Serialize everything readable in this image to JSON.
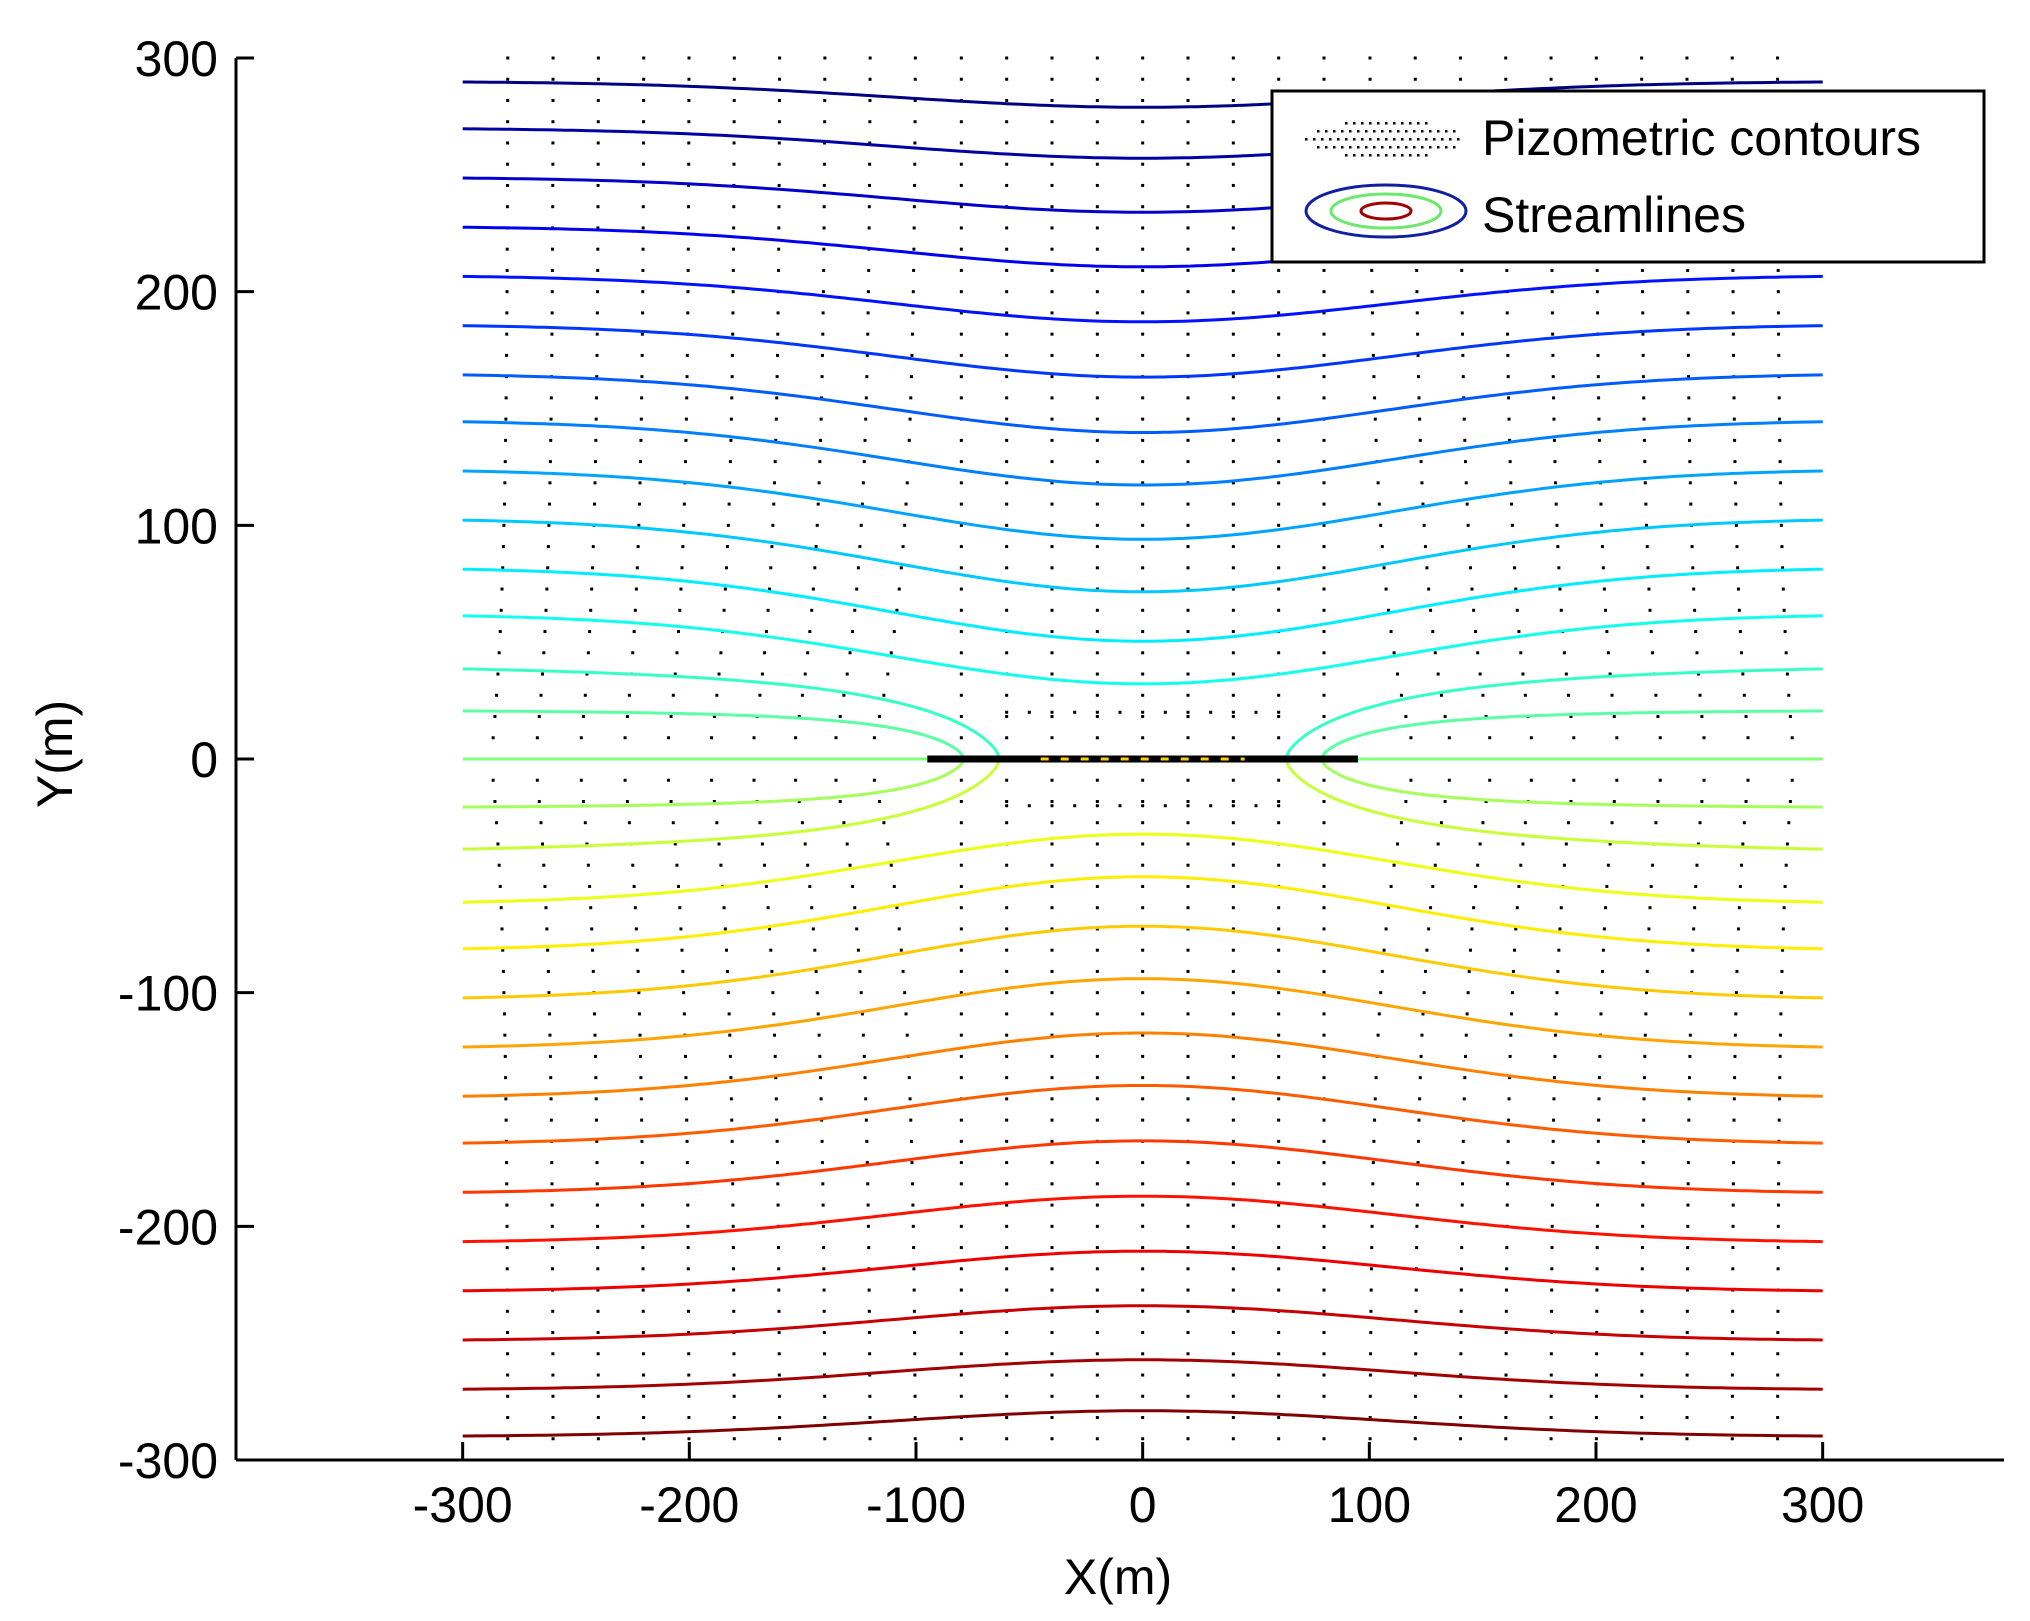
{
  "chart_data": {
    "type": "contour",
    "title": "",
    "xlabel": "X(m)",
    "ylabel": "Y(m)",
    "xlim": [
      -400,
      380
    ],
    "ylim": [
      -300,
      300
    ],
    "x_ticks": [
      -300,
      -200,
      -100,
      0,
      100,
      200,
      300
    ],
    "y_ticks": [
      -300,
      -200,
      -100,
      0,
      100,
      200,
      300
    ],
    "x_tick_labels": [
      "-300",
      "-200",
      "-100",
      "0",
      "100",
      "200",
      "300"
    ],
    "y_tick_labels": [
      "-300",
      "-200",
      "-100",
      "0",
      "100",
      "200",
      "300"
    ],
    "grid": false,
    "domain_x": [
      -300,
      300
    ],
    "fracture": {
      "x_start": -95,
      "x_end": 95,
      "y": 0
    },
    "legend": {
      "position": "top-right",
      "entries": [
        {
          "label": "Pizometric contours",
          "style": "dotted"
        },
        {
          "label": "Streamlines",
          "style": "colored-contours"
        }
      ]
    },
    "series": [
      {
        "name": "streamlines",
        "colormap": "jet",
        "levels": [
          290,
          270,
          249,
          228,
          207,
          186,
          165,
          145,
          124,
          103,
          82,
          62,
          41,
          21,
          0
        ]
      },
      {
        "name": "pizometric contours",
        "style": "dotted",
        "x_levels": [
          -280,
          -260,
          -240,
          -220,
          -200,
          -180,
          -160,
          -140,
          -120,
          -100,
          -80,
          -60,
          -40,
          -20,
          0,
          20,
          40,
          60,
          80,
          100,
          120,
          140,
          160,
          180,
          200,
          220,
          240,
          260,
          280
        ]
      }
    ],
    "colors": {
      "axis": "#000000",
      "dots": "#000000",
      "fracture": "#000000",
      "fracture_dash": "#ffd000"
    }
  }
}
